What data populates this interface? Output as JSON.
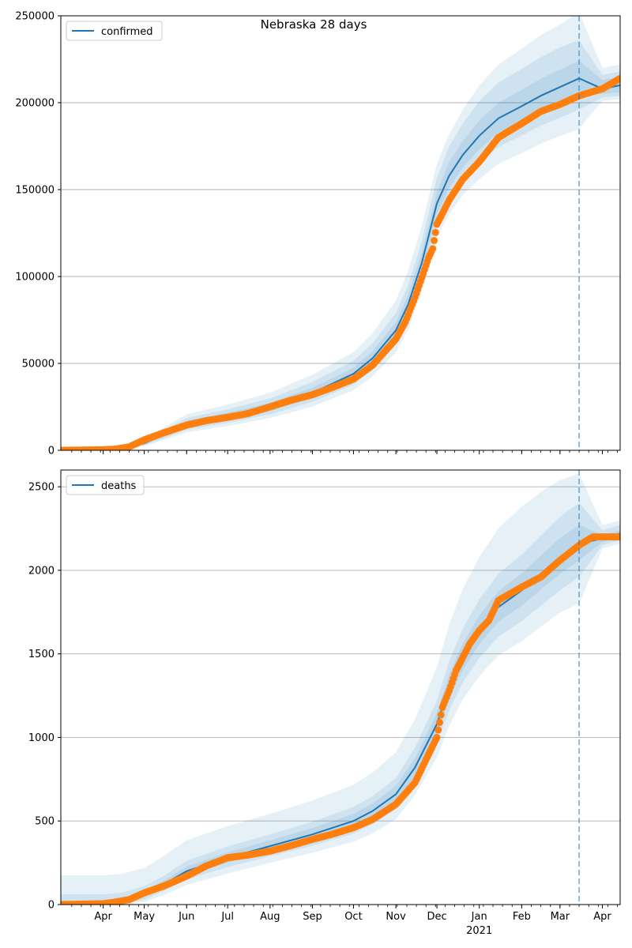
{
  "figure": {
    "title": "Nebraska 28 days"
  },
  "colors": {
    "model": "#1f77b4",
    "observed": "#ff7f0e",
    "band": "#1f77b4",
    "grid": "#b0b0b0",
    "cutoff": "#1f77b4"
  },
  "x_axis": {
    "start": "2020-03-01",
    "end": "2021-04-14",
    "cutoff_date": "2021-03-15",
    "month_labels": [
      "Apr",
      "May",
      "Jun",
      "Jul",
      "Aug",
      "Sep",
      "Oct",
      "Nov",
      "Dec",
      "Jan",
      "Feb",
      "Mar",
      "Apr"
    ],
    "month_dates": [
      "2020-04-01",
      "2020-05-01",
      "2020-06-01",
      "2020-07-01",
      "2020-08-01",
      "2020-09-01",
      "2020-10-01",
      "2020-11-01",
      "2020-12-01",
      "2021-01-01",
      "2021-02-01",
      "2021-03-01",
      "2021-04-01"
    ],
    "year_label": "2021",
    "year_label_date": "2021-01-01"
  },
  "chart_data": [
    {
      "type": "line",
      "legend": "confirmed",
      "legend_position": "top-left",
      "grid": "y",
      "ylim": [
        0,
        250000
      ],
      "yticks": [
        0,
        50000,
        100000,
        150000,
        200000,
        250000
      ],
      "ytick_labels": [
        "0",
        "50000",
        "100000",
        "150000",
        "200000",
        "250000"
      ],
      "model": {
        "x": [
          "2020-03-01",
          "2020-04-01",
          "2020-04-15",
          "2020-05-01",
          "2020-05-15",
          "2020-06-01",
          "2020-07-01",
          "2020-08-01",
          "2020-09-01",
          "2020-10-01",
          "2020-10-15",
          "2020-11-01",
          "2020-11-10",
          "2020-11-20",
          "2020-12-01",
          "2020-12-10",
          "2020-12-20",
          "2021-01-01",
          "2021-01-15",
          "2021-02-01",
          "2021-02-15",
          "2021-03-01",
          "2021-03-15",
          "2021-04-01",
          "2021-04-14"
        ],
        "y": [
          0,
          200,
          1000,
          4000,
          9000,
          15000,
          19500,
          25000,
          33000,
          44000,
          53000,
          69000,
          84000,
          108000,
          142000,
          158000,
          170000,
          181000,
          191000,
          198000,
          204000,
          209000,
          214000,
          208000,
          210000
        ]
      },
      "observed": {
        "x": [
          "2020-03-01",
          "2020-04-01",
          "2020-04-10",
          "2020-04-20",
          "2020-05-01",
          "2020-05-15",
          "2020-06-01",
          "2020-06-15",
          "2020-07-01",
          "2020-07-15",
          "2020-08-01",
          "2020-08-15",
          "2020-09-01",
          "2020-09-15",
          "2020-10-01",
          "2020-10-15",
          "2020-11-01",
          "2020-11-08",
          "2020-11-15",
          "2020-11-22",
          "2020-11-25",
          "2020-11-28",
          "2020-12-01",
          "2020-12-10",
          "2020-12-20",
          "2021-01-01",
          "2021-01-15",
          "2021-02-01",
          "2021-02-15",
          "2021-03-01",
          "2021-03-15",
          "2021-04-01",
          "2021-04-14"
        ],
        "y": [
          0,
          300,
          700,
          2000,
          6000,
          10000,
          14500,
          17000,
          19000,
          21000,
          25000,
          28500,
          32000,
          36000,
          41000,
          49000,
          64000,
          74000,
          88000,
          104000,
          111000,
          116000,
          130000,
          144000,
          156000,
          166000,
          180000,
          188000,
          195000,
          199000,
          204000,
          208000,
          214000
        ]
      },
      "bands": [
        {
          "lower": [
            0,
            150,
            800,
            3400,
            7800,
            13200,
            17500,
            22700,
            30200,
            40800,
            49500,
            64800,
            79200,
            102800,
            135600,
            151000,
            162800,
            173200,
            182800,
            189600,
            195400,
            200200,
            205000,
            205000,
            206000
          ],
          "upper": [
            0,
            260,
            1250,
            4700,
            10300,
            16900,
            21600,
            27400,
            36000,
            47500,
            57000,
            73700,
            89300,
            114000,
            148800,
            166000,
            178000,
            189800,
            200000,
            207400,
            213800,
            219000,
            224200,
            213000,
            215000
          ]
        },
        {
          "lower": [
            0,
            110,
            650,
            2900,
            6800,
            11800,
            15800,
            20700,
            27800,
            37800,
            46200,
            60800,
            74600,
            97800,
            129400,
            144000,
            155600,
            165400,
            174600,
            181200,
            186800,
            191400,
            196000,
            203000,
            204000
          ],
          "upper": [
            0,
            320,
            1500,
            5400,
            11500,
            18600,
            23600,
            29900,
            39300,
            51500,
            61600,
            79000,
            95200,
            120300,
            156600,
            175000,
            188000,
            201000,
            211600,
            219400,
            226200,
            231800,
            236000,
            216000,
            218000
          ]
        },
        {
          "lower": [
            0,
            70,
            500,
            2400,
            5800,
            10300,
            14000,
            18600,
            25200,
            34500,
            42600,
            56400,
            69400,
            92000,
            122500,
            136000,
            147000,
            156000,
            164800,
            171000,
            176400,
            180800,
            185000,
            201000,
            202000
          ],
          "upper": [
            0,
            400,
            1800,
            6200,
            13000,
            20800,
            26300,
            33200,
            43500,
            56500,
            67500,
            86200,
            103500,
            129500,
            164800,
            182000,
            196000,
            210000,
            222000,
            231000,
            239000,
            245000,
            252000,
            220000,
            222000
          ]
        }
      ]
    },
    {
      "type": "line",
      "legend": "deaths",
      "legend_position": "top-left",
      "grid": "y",
      "ylim": [
        0,
        2600
      ],
      "yticks": [
        0,
        500,
        1000,
        1500,
        2000,
        2500
      ],
      "ytick_labels": [
        "0",
        "500",
        "1000",
        "1500",
        "2000",
        "2500"
      ],
      "model": {
        "x": [
          "2020-03-01",
          "2020-04-01",
          "2020-04-15",
          "2020-05-01",
          "2020-05-15",
          "2020-06-01",
          "2020-07-01",
          "2020-08-01",
          "2020-09-01",
          "2020-10-01",
          "2020-10-15",
          "2020-11-01",
          "2020-11-15",
          "2020-12-01",
          "2020-12-10",
          "2020-12-20",
          "2021-01-01",
          "2021-01-15",
          "2021-02-01",
          "2021-02-15",
          "2021-03-01",
          "2021-03-15",
          "2021-04-01",
          "2021-04-14"
        ],
        "y": [
          0,
          5,
          20,
          60,
          120,
          200,
          280,
          350,
          420,
          500,
          560,
          660,
          820,
          1080,
          1300,
          1480,
          1640,
          1780,
          1880,
          1980,
          2080,
          2160,
          2190,
          2220
        ]
      },
      "observed": {
        "x": [
          "2020-03-01",
          "2020-04-01",
          "2020-04-10",
          "2020-04-20",
          "2020-05-01",
          "2020-05-15",
          "2020-06-01",
          "2020-06-15",
          "2020-07-01",
          "2020-07-15",
          "2020-08-01",
          "2020-08-15",
          "2020-09-01",
          "2020-09-15",
          "2020-10-01",
          "2020-10-15",
          "2020-11-01",
          "2020-11-15",
          "2020-11-25",
          "2020-12-01",
          "2020-12-05",
          "2020-12-10",
          "2020-12-15",
          "2020-12-20",
          "2020-12-25",
          "2021-01-01",
          "2021-01-08",
          "2021-01-15",
          "2021-02-01",
          "2021-02-15",
          "2021-03-01",
          "2021-03-15",
          "2021-03-25",
          "2021-04-01",
          "2021-04-14"
        ],
        "y": [
          0,
          5,
          15,
          30,
          70,
          110,
          170,
          230,
          280,
          295,
          320,
          350,
          390,
          420,
          460,
          510,
          600,
          730,
          900,
          1000,
          1180,
          1280,
          1400,
          1480,
          1560,
          1640,
          1700,
          1820,
          1900,
          1960,
          2060,
          2150,
          2200,
          2200,
          2200
        ]
      },
      "bands": [
        {
          "lower": [
            0,
            2,
            12,
            45,
            100,
            175,
            252,
            320,
            386,
            462,
            520,
            615,
            770,
            1020,
            1232,
            1405,
            1558,
            1692,
            1788,
            1884,
            1980,
            2060,
            2170,
            2200
          ],
          "upper": [
            20,
            20,
            32,
            78,
            142,
            228,
            312,
            384,
            458,
            542,
            604,
            710,
            876,
            1146,
            1376,
            1564,
            1730,
            1876,
            1982,
            2088,
            2192,
            2272,
            2210,
            2240
          ]
        },
        {
          "lower": [
            0,
            0,
            5,
            30,
            80,
            150,
            224,
            290,
            352,
            424,
            480,
            570,
            720,
            960,
            1164,
            1330,
            1476,
            1604,
            1696,
            1788,
            1880,
            1960,
            2150,
            2180
          ],
          "upper": [
            60,
            60,
            72,
            110,
            170,
            262,
            348,
            420,
            496,
            584,
            648,
            758,
            938,
            1220,
            1456,
            1652,
            1826,
            1980,
            2094,
            2208,
            2320,
            2404,
            2240,
            2270
          ]
        },
        {
          "lower": [
            0,
            0,
            0,
            15,
            55,
            118,
            186,
            250,
            310,
            376,
            426,
            510,
            656,
            880,
            1070,
            1228,
            1368,
            1490,
            1576,
            1662,
            1748,
            1800,
            2130,
            2160
          ],
          "upper": [
            175,
            175,
            185,
            220,
            290,
            385,
            470,
            542,
            622,
            716,
            790,
            912,
            1108,
            1420,
            1676,
            1890,
            2080,
            2250,
            2380,
            2470,
            2540,
            2580,
            2270,
            2300
          ]
        }
      ]
    }
  ]
}
